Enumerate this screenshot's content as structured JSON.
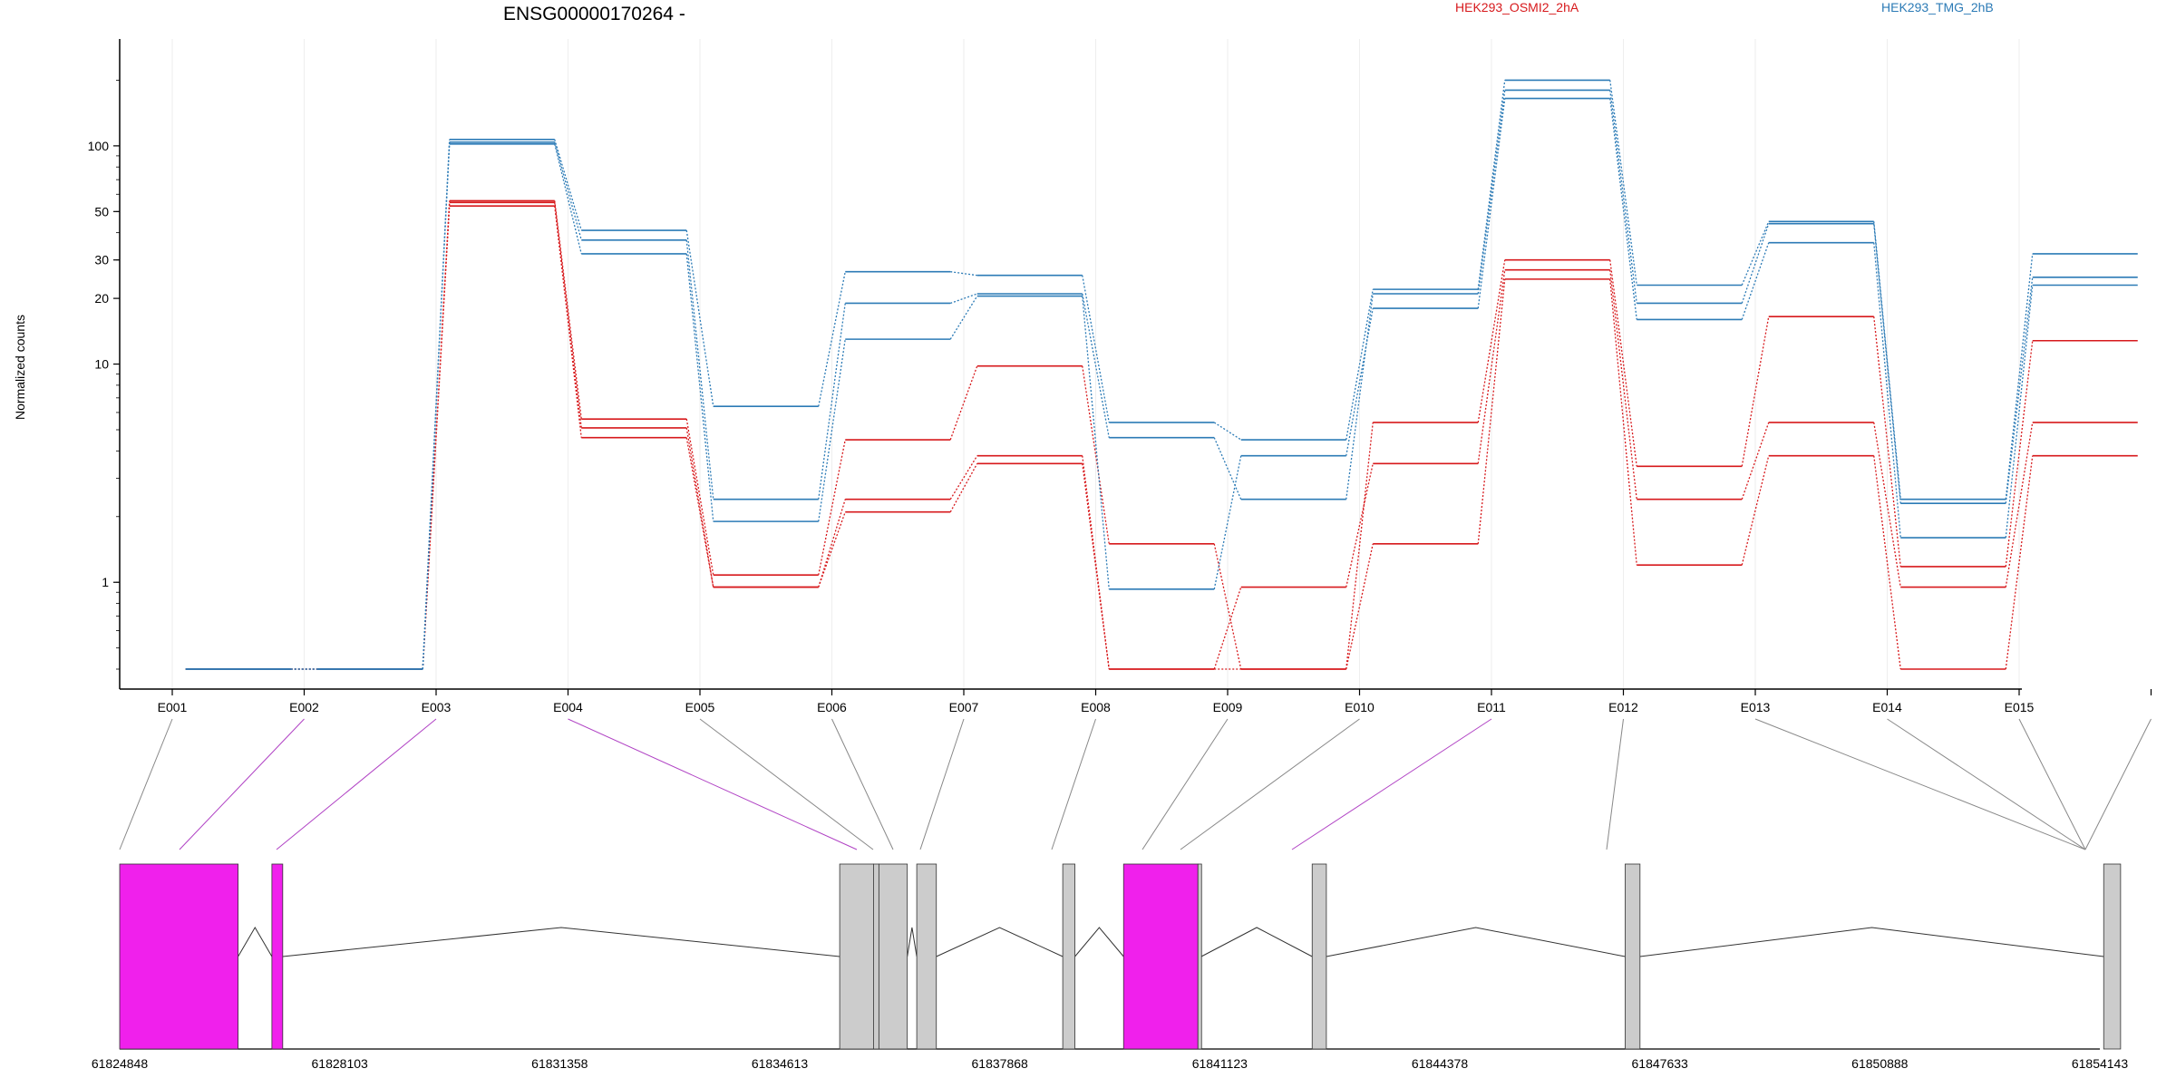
{
  "chart_data": {
    "type": "line",
    "title": "ENSG00000170264 -",
    "ylabel": "Normalized counts",
    "xlabel": "",
    "y_scale": "log",
    "ylim": [
      0.4,
      260
    ],
    "y_ticks": [
      1,
      10,
      20,
      30,
      50,
      100
    ],
    "y_tick_labels": [
      "1",
      "10",
      "20",
      "30",
      "50",
      "100"
    ],
    "categories": [
      "E001",
      "E002",
      "E003",
      "E004",
      "E005",
      "E006",
      "E007",
      "E008",
      "E009",
      "E010",
      "E011",
      "E012",
      "E013",
      "E014",
      "E015"
    ],
    "grid": "vertical",
    "legend_position": "top",
    "series": [
      {
        "name": "HEK293_OSMI2_2hA",
        "group": "red",
        "color": "#d7191c",
        "values": [
          0.4,
          0.4,
          56,
          5.6,
          1.08,
          4.5,
          9.8,
          1.5,
          0.4,
          5.4,
          30,
          3.4,
          16.5,
          1.18,
          12.8
        ]
      },
      {
        "name": "",
        "group": "red",
        "color": "#d7191c",
        "values": [
          0.4,
          0.4,
          55,
          5.1,
          0.95,
          2.4,
          3.8,
          0.4,
          0.95,
          3.5,
          27,
          2.4,
          5.4,
          0.95,
          5.4
        ]
      },
      {
        "name": "",
        "group": "red",
        "color": "#d7191c",
        "values": [
          0.4,
          0.4,
          53,
          4.6,
          0.95,
          2.1,
          3.5,
          0.4,
          0.4,
          1.5,
          24.5,
          1.2,
          3.8,
          0.4,
          3.8
        ]
      },
      {
        "name": "HEK293_TMG_2hB",
        "group": "blue",
        "color": "#2c7bb6",
        "values": [
          0.4,
          0.4,
          107,
          41,
          6.4,
          26.5,
          25.5,
          5.4,
          4.5,
          22,
          200,
          23,
          45,
          2.4,
          32
        ]
      },
      {
        "name": "",
        "group": "blue",
        "color": "#2c7bb6",
        "values": [
          0.4,
          0.4,
          104,
          37,
          2.4,
          19,
          21,
          4.6,
          2.4,
          21,
          180,
          19,
          44,
          2.3,
          25
        ]
      },
      {
        "name": "",
        "group": "blue",
        "color": "#2c7bb6",
        "values": [
          0.4,
          0.4,
          102,
          32,
          1.9,
          13,
          20.5,
          0.93,
          3.8,
          18,
          165,
          16,
          36,
          1.6,
          23
        ]
      }
    ],
    "gene_model": {
      "coordinate_ticks": [
        "61824848",
        "61828103",
        "61831358",
        "61834613",
        "61837868",
        "61841123",
        "61844378",
        "61847633",
        "61850888",
        "61854143"
      ],
      "coordinate_tick_values": [
        61824848,
        61828103,
        61831358,
        61834613,
        61837868,
        61841123,
        61844378,
        61847633,
        61850888,
        61854143
      ],
      "exons": [
        {
          "id": "E001",
          "start": 61824848,
          "end": 61826600,
          "highlight": true
        },
        {
          "id": "E002",
          "start": 61827100,
          "end": 61827260,
          "highlight": true
        },
        {
          "id": "E003",
          "start": 61835500,
          "end": 61836000,
          "highlight": false
        },
        {
          "id": "E004",
          "start": 61836000,
          "end": 61836080,
          "highlight": false
        },
        {
          "id": "E005",
          "start": 61836080,
          "end": 61836500,
          "highlight": false
        },
        {
          "id": "E006",
          "start": 61836640,
          "end": 61836930,
          "highlight": false
        },
        {
          "id": "E007",
          "start": 61838800,
          "end": 61838980,
          "highlight": false
        },
        {
          "id": "E008",
          "start": 61839700,
          "end": 61840800,
          "highlight": true
        },
        {
          "id": "E009",
          "start": 61840800,
          "end": 61840850,
          "highlight": false
        },
        {
          "id": "E010",
          "start": 61842490,
          "end": 61842700,
          "highlight": false
        },
        {
          "id": "E011",
          "start": 61847120,
          "end": 61847340,
          "highlight": false
        },
        {
          "id": "E012",
          "start": 61854200,
          "end": 61854450,
          "highlight": false
        }
      ],
      "colors": {
        "highlight": "#f020ec",
        "exon": "#cccccc",
        "link": "#888888",
        "link_highlight": "#b042c4"
      }
    }
  }
}
